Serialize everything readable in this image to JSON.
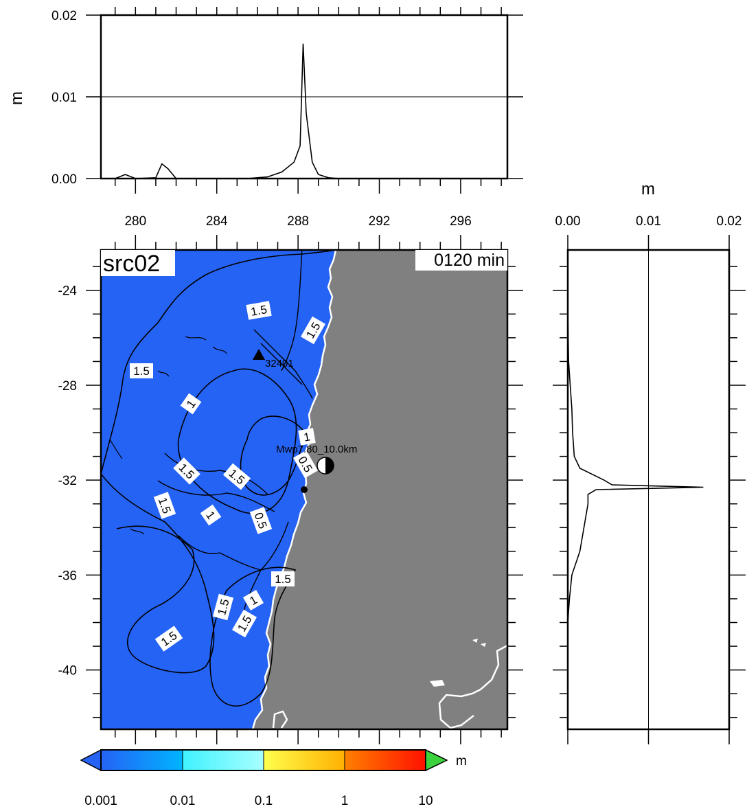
{
  "map": {
    "source_label": "src02",
    "time_label": "0120 min",
    "event_label": "Mwp7.80_10.0km",
    "station_label": "32401",
    "contour_labels": [
      "1.5",
      "1.5",
      "1.5",
      "1",
      "1",
      "0.5",
      "1.5",
      "1.5",
      "1.5",
      "1",
      "0.5",
      "1.5",
      "1",
      "1.5",
      "1.5",
      "1.5"
    ],
    "x_ticks": [
      "280",
      "284",
      "288",
      "292",
      "296"
    ],
    "y_ticks": [
      "-24",
      "-28",
      "-32",
      "-36",
      "-40"
    ],
    "colors": {
      "ocean": "#2563f5",
      "land": "#808080",
      "coast": "#ffffff",
      "contour": "#000000"
    }
  },
  "top_profile": {
    "unit": "m",
    "y_ticks": [
      "0.02",
      "0.01",
      "0.00"
    ],
    "x_ticks": [
      "280",
      "284",
      "288",
      "292",
      "296"
    ],
    "series": {
      "x": [
        278.5,
        279,
        279.5,
        280,
        281,
        281.3,
        281.6,
        282,
        284,
        285.5,
        286.5,
        287.2,
        287.8,
        288.1,
        288.25,
        288.4,
        288.7,
        289,
        289.5,
        290,
        292,
        298
      ],
      "y": [
        0,
        0,
        0.0005,
        0,
        0.0001,
        0.0018,
        0.0012,
        0,
        0,
        0,
        0.0002,
        0.0008,
        0.002,
        0.004,
        0.0165,
        0.008,
        0.002,
        0.0005,
        0.0001,
        0,
        0,
        0
      ]
    }
  },
  "side_profile": {
    "unit": "m",
    "x_ticks": [
      "0.00",
      "0.01",
      "0.02"
    ],
    "series": {
      "lat": [
        -22.5,
        -25,
        -27,
        -28,
        -29,
        -30,
        -31,
        -31.5,
        -32,
        -32.2,
        -32.3,
        -32.4,
        -32.6,
        -33,
        -34,
        -35,
        -36,
        -37,
        -38,
        -42.5
      ],
      "val": [
        0,
        0,
        0.0001,
        0.0003,
        0.0005,
        0.0006,
        0.0008,
        0.0015,
        0.0045,
        0.0055,
        0.0168,
        0.0035,
        0.0025,
        0.0025,
        0.002,
        0.0015,
        0.0005,
        0.0002,
        0,
        0
      ]
    }
  },
  "colorbar": {
    "unit": "m",
    "ticks": [
      "0.001",
      "0.01",
      "0.1",
      "1",
      "10"
    ],
    "colors": [
      "#2563f5",
      "#00b8ff",
      "#4dffff",
      "#a8ffff",
      "#ffff4d",
      "#ffc000",
      "#ff7800",
      "#ff2000",
      "#3bd23b"
    ]
  }
}
